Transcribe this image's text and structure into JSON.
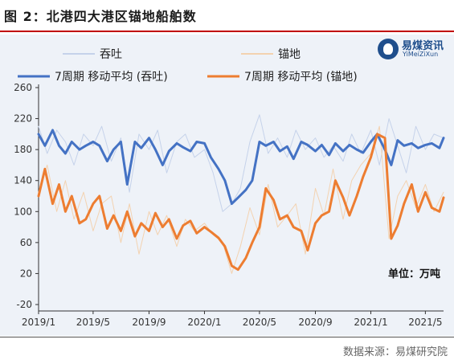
{
  "title": "图 2：北港四大港区锚地船舶数",
  "source": "数据来源：易煤研究院",
  "logo": {
    "cn": "易煤资讯",
    "en": "YiMeiZiXun"
  },
  "colors": {
    "title_rule": "#c00000",
    "throughput_raw": "#c5d2ea",
    "anchorage_raw": "#f3d2b0",
    "throughput_ma": "#4472c4",
    "anchorage_ma": "#ed7d31",
    "plot_bg": "#eef2f8"
  },
  "chart_data": {
    "type": "line",
    "ylim": [
      -20,
      260
    ],
    "yticks": [
      -20,
      20,
      60,
      100,
      140,
      180,
      220,
      260
    ],
    "y_unit_label": "单位：万吨",
    "grid": false,
    "legend_position": "top",
    "x_range": [
      "2019-01-01",
      "2021-06-10"
    ],
    "x_tick_labels": [
      "2019/1",
      "2019/5",
      "2019/9",
      "2020/1",
      "2020/5",
      "2020/9",
      "2021/1",
      "2021/5"
    ],
    "x_tick_dates": [
      "2019-01-01",
      "2019-05-01",
      "2019-09-01",
      "2020-01-01",
      "2020-05-01",
      "2020-09-01",
      "2021-01-01",
      "2021-05-01"
    ],
    "series": [
      {
        "name": "吞吐",
        "kind": "raw",
        "x": [
          "2019-01-01",
          "2019-01-20",
          "2019-02-10",
          "2019-03-01",
          "2019-03-20",
          "2019-04-10",
          "2019-05-01",
          "2019-05-20",
          "2019-06-10",
          "2019-07-01",
          "2019-07-20",
          "2019-08-10",
          "2019-09-01",
          "2019-09-20",
          "2019-10-10",
          "2019-11-01",
          "2019-11-20",
          "2019-12-10",
          "2020-01-01",
          "2020-01-20",
          "2020-02-10",
          "2020-03-01",
          "2020-03-20",
          "2020-04-10",
          "2020-05-01",
          "2020-05-20",
          "2020-06-10",
          "2020-07-01",
          "2020-07-20",
          "2020-08-10",
          "2020-09-01",
          "2020-09-20",
          "2020-10-10",
          "2020-11-01",
          "2020-11-20",
          "2020-12-10",
          "2021-01-01",
          "2021-01-20",
          "2021-02-10",
          "2021-03-01",
          "2021-03-20",
          "2021-04-10",
          "2021-05-01",
          "2021-05-20",
          "2021-06-10"
        ],
        "values": [
          210,
          175,
          205,
          190,
          160,
          200,
          185,
          210,
          165,
          195,
          125,
          200,
          180,
          205,
          150,
          190,
          200,
          170,
          180,
          150,
          100,
          110,
          130,
          190,
          225,
          175,
          195,
          170,
          205,
          180,
          195,
          170,
          185,
          165,
          200,
          175,
          205,
          160,
          220,
          185,
          150,
          210,
          180,
          200,
          195
        ]
      },
      {
        "name": "锚地",
        "kind": "raw",
        "x": [
          "2019-01-01",
          "2019-01-20",
          "2019-02-10",
          "2019-03-01",
          "2019-03-20",
          "2019-04-10",
          "2019-05-01",
          "2019-05-20",
          "2019-06-10",
          "2019-07-01",
          "2019-07-20",
          "2019-08-10",
          "2019-09-01",
          "2019-09-20",
          "2019-10-10",
          "2019-11-01",
          "2019-11-20",
          "2019-12-10",
          "2020-01-01",
          "2020-01-20",
          "2020-02-10",
          "2020-03-01",
          "2020-03-20",
          "2020-04-10",
          "2020-05-01",
          "2020-05-20",
          "2020-06-10",
          "2020-07-01",
          "2020-07-20",
          "2020-08-10",
          "2020-09-01",
          "2020-09-20",
          "2020-10-10",
          "2020-11-01",
          "2020-11-20",
          "2020-12-10",
          "2021-01-01",
          "2021-01-20",
          "2021-02-10",
          "2021-03-01",
          "2021-03-20",
          "2021-04-10",
          "2021-05-01",
          "2021-05-20",
          "2021-06-10"
        ],
        "values": [
          125,
          160,
          100,
          140,
          90,
          125,
          75,
          110,
          120,
          60,
          110,
          45,
          100,
          70,
          95,
          55,
          90,
          75,
          85,
          70,
          60,
          20,
          55,
          105,
          70,
          135,
          80,
          95,
          110,
          45,
          130,
          95,
          155,
          90,
          140,
          160,
          175,
          210,
          65,
          120,
          140,
          105,
          135,
          100,
          125
        ]
      },
      {
        "name": "7周期 移动平均 (吞吐)",
        "kind": "ma",
        "x": [
          "2019-01-01",
          "2019-01-15",
          "2019-02-01",
          "2019-02-15",
          "2019-03-01",
          "2019-03-15",
          "2019-04-01",
          "2019-04-15",
          "2019-05-01",
          "2019-05-15",
          "2019-06-01",
          "2019-06-15",
          "2019-07-01",
          "2019-07-15",
          "2019-08-01",
          "2019-08-15",
          "2019-09-01",
          "2019-09-15",
          "2019-10-01",
          "2019-10-15",
          "2019-11-01",
          "2019-11-15",
          "2019-12-01",
          "2019-12-15",
          "2020-01-01",
          "2020-01-15",
          "2020-02-01",
          "2020-02-15",
          "2020-03-01",
          "2020-03-15",
          "2020-04-01",
          "2020-04-15",
          "2020-05-01",
          "2020-05-15",
          "2020-06-01",
          "2020-06-15",
          "2020-07-01",
          "2020-07-15",
          "2020-08-01",
          "2020-08-15",
          "2020-09-01",
          "2020-09-15",
          "2020-10-01",
          "2020-10-15",
          "2020-11-01",
          "2020-11-15",
          "2020-12-01",
          "2020-12-15",
          "2021-01-01",
          "2021-01-15",
          "2021-02-01",
          "2021-02-15",
          "2021-03-01",
          "2021-03-15",
          "2021-04-01",
          "2021-04-15",
          "2021-05-01",
          "2021-05-15",
          "2021-06-01",
          "2021-06-10"
        ],
        "values": [
          200,
          185,
          205,
          185,
          175,
          190,
          180,
          185,
          190,
          185,
          165,
          180,
          190,
          135,
          190,
          182,
          195,
          180,
          160,
          178,
          188,
          183,
          178,
          190,
          188,
          170,
          155,
          140,
          110,
          118,
          128,
          140,
          190,
          185,
          190,
          178,
          184,
          168,
          190,
          186,
          178,
          186,
          173,
          188,
          178,
          186,
          180,
          176,
          190,
          200,
          180,
          160,
          192,
          185,
          188,
          182,
          186,
          188,
          182,
          195
        ]
      },
      {
        "name": "7周期 移动平均 (锚地)",
        "kind": "ma",
        "x": [
          "2019-01-01",
          "2019-01-15",
          "2019-02-01",
          "2019-02-15",
          "2019-03-01",
          "2019-03-15",
          "2019-04-01",
          "2019-04-15",
          "2019-05-01",
          "2019-05-15",
          "2019-06-01",
          "2019-06-15",
          "2019-07-01",
          "2019-07-15",
          "2019-08-01",
          "2019-08-15",
          "2019-09-01",
          "2019-09-15",
          "2019-10-01",
          "2019-10-15",
          "2019-11-01",
          "2019-11-15",
          "2019-12-01",
          "2019-12-15",
          "2020-01-01",
          "2020-01-15",
          "2020-02-01",
          "2020-02-15",
          "2020-03-01",
          "2020-03-15",
          "2020-04-01",
          "2020-04-15",
          "2020-05-01",
          "2020-05-15",
          "2020-06-01",
          "2020-06-15",
          "2020-07-01",
          "2020-07-15",
          "2020-08-01",
          "2020-08-15",
          "2020-09-01",
          "2020-09-15",
          "2020-10-01",
          "2020-10-15",
          "2020-11-01",
          "2020-11-15",
          "2020-12-01",
          "2020-12-15",
          "2021-01-01",
          "2021-01-15",
          "2021-02-01",
          "2021-02-15",
          "2021-03-01",
          "2021-03-15",
          "2021-04-01",
          "2021-04-15",
          "2021-05-01",
          "2021-05-15",
          "2021-06-01",
          "2021-06-10"
        ],
        "values": [
          120,
          155,
          110,
          135,
          100,
          120,
          85,
          90,
          110,
          120,
          78,
          95,
          75,
          100,
          68,
          85,
          75,
          98,
          80,
          90,
          65,
          82,
          88,
          72,
          80,
          74,
          66,
          55,
          30,
          25,
          40,
          60,
          80,
          130,
          115,
          90,
          95,
          80,
          75,
          50,
          85,
          95,
          100,
          140,
          118,
          95,
          120,
          145,
          170,
          200,
          195,
          65,
          82,
          110,
          135,
          100,
          125,
          105,
          100,
          118
        ]
      }
    ]
  }
}
